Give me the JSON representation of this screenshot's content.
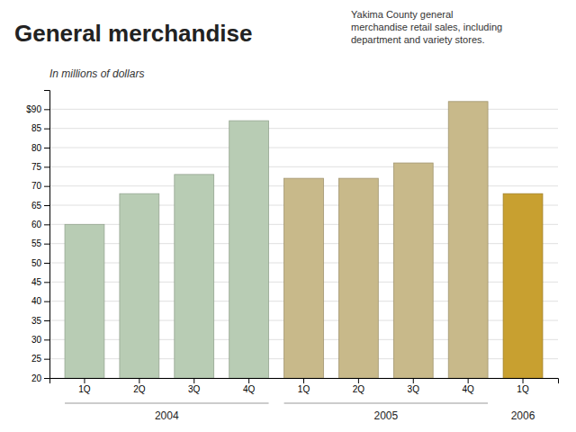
{
  "chart_data": {
    "type": "bar",
    "title": "General merchandise",
    "subtitle": "Yakima County general\nmerchandise retail sales, including\ndepartment and variety stores.",
    "ylabel": "In millions of dollars",
    "categories": [
      "1Q",
      "2Q",
      "3Q",
      "4Q",
      "1Q",
      "2Q",
      "3Q",
      "4Q",
      "1Q"
    ],
    "category_groups": [
      "2004",
      "2004",
      "2004",
      "2004",
      "2005",
      "2005",
      "2005",
      "2005",
      "2006"
    ],
    "values": [
      60,
      68,
      73,
      87,
      72,
      72,
      76,
      92,
      68
    ],
    "colors": [
      "#b8ccb4",
      "#b8ccb4",
      "#b8ccb4",
      "#b8ccb4",
      "#c8b98a",
      "#c8b98a",
      "#c8b98a",
      "#c8b98a",
      "#c8a030"
    ],
    "ylim": [
      20,
      95
    ],
    "yticks": [
      20,
      25,
      30,
      35,
      40,
      45,
      50,
      55,
      60,
      65,
      70,
      75,
      80,
      85,
      {
        "value": 90,
        "label": "$90"
      }
    ],
    "grid": true
  }
}
